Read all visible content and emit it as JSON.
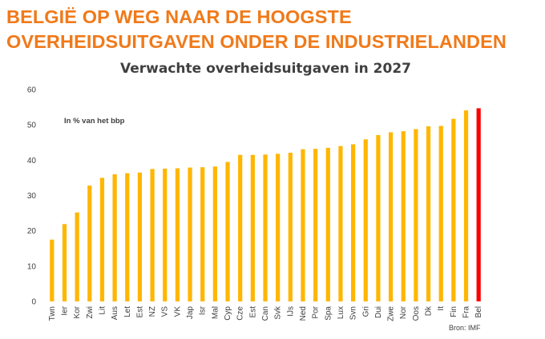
{
  "headline": {
    "line1": "BELGIË OP WEG NAAR DE HOOGSTE",
    "line2": "OVERHEIDSUITGAVEN ONDER DE INDUSTRIELANDEN"
  },
  "chart_data": {
    "type": "bar",
    "title": "Verwachte overheidsuitgaven in 2027",
    "annotation": "In % van het bbp",
    "source": "Bron: IMF",
    "xlabel": "",
    "ylabel": "",
    "ylim": [
      0,
      60
    ],
    "yticks": [
      0,
      10,
      20,
      30,
      40,
      50,
      60
    ],
    "grid": false,
    "categories": [
      "Twn",
      "Ier",
      "Kor",
      "Zwi",
      "Lit",
      "Aus",
      "Let",
      "Est",
      "NZ",
      "VS",
      "VK",
      "Jap",
      "Isr",
      "Mal",
      "Cyp",
      "Cze",
      "Est",
      "Can",
      "Svk",
      "IJs",
      "Ned",
      "Por",
      "Spa",
      "Lux",
      "Svn",
      "Gri",
      "Dui",
      "Zwe",
      "Nor",
      "Oos",
      "Dk",
      "It",
      "Fin",
      "Fra",
      "Bel"
    ],
    "values": [
      17.5,
      21.9,
      25.2,
      32.8,
      35,
      36,
      36.3,
      36.5,
      37.5,
      37.6,
      37.7,
      37.9,
      38,
      38.2,
      39.5,
      41.5,
      41.5,
      41.6,
      41.8,
      42.1,
      43.1,
      43.2,
      43.5,
      44,
      44.5,
      45.9,
      47.1,
      47.9,
      48.2,
      48.8,
      49.6,
      49.7,
      51.7,
      54.1,
      54.7
    ],
    "colors": {
      "default": "#ffb600",
      "highlight": "#ff0000",
      "highlight_index": 34
    }
  }
}
